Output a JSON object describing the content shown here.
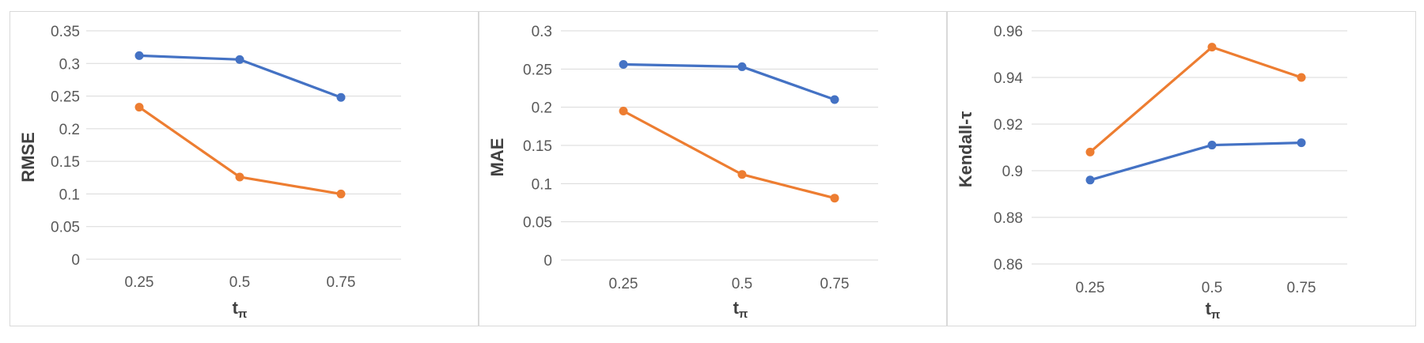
{
  "chart_data": [
    {
      "type": "line",
      "title": "",
      "xlabel": "t",
      "xlabel_sub": "π",
      "ylabel": "RMSE",
      "categories": [
        "0.25",
        "0.5",
        "0.75"
      ],
      "ylim": [
        0,
        0.35
      ],
      "yticks": [
        "0",
        "0.05",
        "0.1",
        "0.15",
        "0.2",
        "0.25",
        "0.3",
        "0.35"
      ],
      "grid": true,
      "series": [
        {
          "color": "#4472c4",
          "values": [
            0.312,
            0.306,
            0.248
          ]
        },
        {
          "color": "#ed7d31",
          "values": [
            0.233,
            0.126,
            0.1
          ]
        }
      ]
    },
    {
      "type": "line",
      "title": "",
      "xlabel": "t",
      "xlabel_sub": "π",
      "ylabel": "MAE",
      "categories": [
        "0.25",
        "0.5",
        "0.75"
      ],
      "ylim": [
        0,
        0.3
      ],
      "yticks": [
        "0",
        "0.05",
        "0.1",
        "0.15",
        "0.2",
        "0.25",
        "0.3"
      ],
      "grid": true,
      "series": [
        {
          "color": "#4472c4",
          "values": [
            0.256,
            0.253,
            0.21
          ]
        },
        {
          "color": "#ed7d31",
          "values": [
            0.195,
            0.112,
            0.081
          ]
        }
      ]
    },
    {
      "type": "line",
      "title": "",
      "xlabel": "t",
      "xlabel_sub": "π",
      "ylabel": "Kendall-τ",
      "categories": [
        "0.25",
        "0.5",
        "0.75"
      ],
      "ylim": [
        0.86,
        0.96
      ],
      "yticks": [
        "0.86",
        "0.88",
        "0.9",
        "0.92",
        "0.94",
        "0.96"
      ],
      "grid": true,
      "series": [
        {
          "color": "#4472c4",
          "values": [
            0.896,
            0.911,
            0.912
          ]
        },
        {
          "color": "#ed7d31",
          "values": [
            0.908,
            0.953,
            0.94
          ]
        }
      ]
    }
  ]
}
